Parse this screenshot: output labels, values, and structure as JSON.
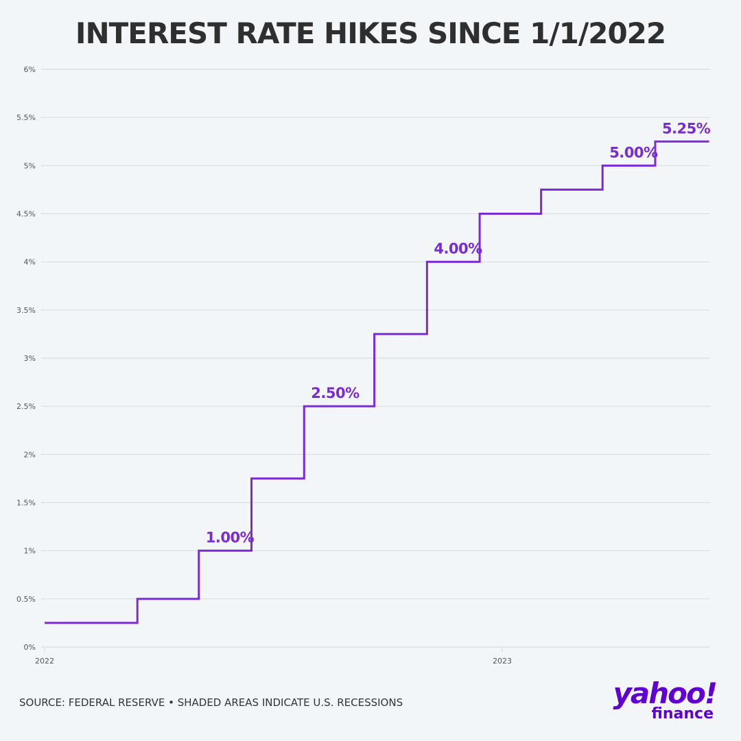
{
  "title": "INTEREST RATE HIKES SINCE 1/1/2022",
  "source": "SOURCE: FEDERAL RESERVE • SHADED AREAS INDICATE U.S. RECESSIONS",
  "brand": {
    "word": "yahoo!",
    "sub": "finance",
    "color": "#6001d2"
  },
  "colors": {
    "line": "#7a2bd3",
    "label": "#7a2bd3",
    "grid": "#d9dde3",
    "axis_text": "#555555",
    "background": "#f3f6f9"
  },
  "chart_data": {
    "type": "line",
    "step": true,
    "title": "INTEREST RATE HIKES SINCE 1/1/2022",
    "xlabel": "",
    "ylabel": "",
    "x_ticks": [
      "2022",
      "2023"
    ],
    "xlim": [
      "2022-01-01",
      "2023-06-15"
    ],
    "ylim": [
      0,
      6
    ],
    "y_ticks": [
      "0%",
      "0.5%",
      "1%",
      "1.5%",
      "2%",
      "2.5%",
      "3%",
      "3.5%",
      "4%",
      "4.5%",
      "5%",
      "5.5%",
      "6%"
    ],
    "grid": true,
    "series": [
      {
        "values": [
          {
            "x": "2022-01-01",
            "y": 0.25
          },
          {
            "x": "2022-03-16",
            "y": 0.5
          },
          {
            "x": "2022-05-04",
            "y": 1.0
          },
          {
            "x": "2022-06-15",
            "y": 1.75
          },
          {
            "x": "2022-07-27",
            "y": 2.5
          },
          {
            "x": "2022-09-21",
            "y": 3.25
          },
          {
            "x": "2022-11-02",
            "y": 4.0
          },
          {
            "x": "2022-12-14",
            "y": 4.5
          },
          {
            "x": "2023-02-01",
            "y": 4.75
          },
          {
            "x": "2023-03-22",
            "y": 5.0
          },
          {
            "x": "2023-05-03",
            "y": 5.25
          },
          {
            "x": "2023-06-15",
            "y": 5.25
          }
        ]
      }
    ],
    "annotations": [
      {
        "text": "1.00%",
        "x": "2022-05-04",
        "y": 1.0
      },
      {
        "text": "2.50%",
        "x": "2022-07-27",
        "y": 2.5
      },
      {
        "text": "4.00%",
        "x": "2022-11-02",
        "y": 4.0
      },
      {
        "text": "5.00%",
        "x": "2023-03-22",
        "y": 5.0
      },
      {
        "text": "5.25%",
        "x": "2023-05-03",
        "y": 5.25
      }
    ]
  }
}
